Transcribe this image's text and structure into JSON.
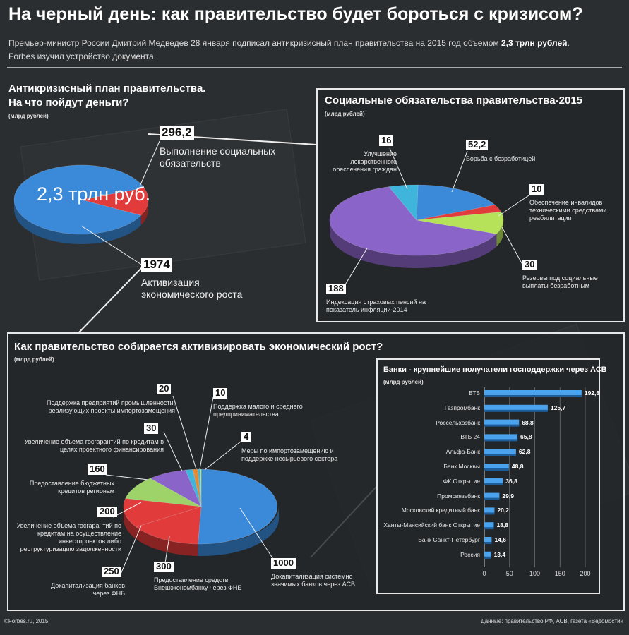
{
  "header": {
    "title": "На черный день: как правительство будет бороться с кризисом?",
    "intro_line1_pre": "Премьер-министр России Дмитрий Медведев 28 января подписал антикризисный план правительства на 2015 год объемом ",
    "intro_line1_hl": "2,3 трлн рублей",
    "intro_line1_post": ".",
    "intro_line2": "Forbes изучил устройство документа."
  },
  "colors": {
    "red": "#e23b3b",
    "blue": "#3b8ad9",
    "purple": "#8a64c8",
    "cyan": "#3fb5dc",
    "lime": "#b6e25a",
    "green": "#9ed36a",
    "orange": "#e58a2e",
    "bar": "#4aa3ec"
  },
  "chart_data": [
    {
      "type": "pie",
      "title": "Антикризисный план правительства. На что пойдут деньги?",
      "unit": "(млрд рублей)",
      "center_label": "2,3 трлн руб.",
      "slices": [
        {
          "value": 296.2,
          "value_label": "296,2",
          "label": "Выполнение социальных обязательств",
          "color": "red"
        },
        {
          "value": 1974,
          "value_label": "1974",
          "label": "Активизация экономического роста",
          "color": "blue"
        }
      ]
    },
    {
      "type": "pie",
      "title": "Социальные обязательства правительства-2015",
      "unit": "(млрд рублей)",
      "slices": [
        {
          "value": 52.2,
          "value_label": "52,2",
          "label": "Борьба с безработицей",
          "color": "blue"
        },
        {
          "value": 10,
          "value_label": "10",
          "label": "Обеспечение инвалидов техническими средствами реабилитации",
          "color": "red"
        },
        {
          "value": 30,
          "value_label": "30",
          "label": "Резервы под социальные выплаты безработным",
          "color": "lime"
        },
        {
          "value": 188,
          "value_label": "188",
          "label": "Индексация страховых пенсий на показатель инфляции-2014",
          "color": "purple"
        },
        {
          "value": 16,
          "value_label": "16",
          "label": "Улучшение лекарственного обеспечения граждан",
          "color": "cyan"
        }
      ]
    },
    {
      "type": "pie",
      "title": "Как правительство собирается активизировать экономический рост?",
      "unit": "(млрд рублей)",
      "slices": [
        {
          "value": 1000,
          "value_label": "1000",
          "label": "Докапитализация системно значимых банков через АСВ",
          "color": "blue"
        },
        {
          "value": 300,
          "value_label": "300",
          "label": "Предоставление средств Внешэкономбанку через ФНБ",
          "color": "red"
        },
        {
          "value": 250,
          "value_label": "250",
          "label": "Докапитализация банков через ФНБ",
          "color": "red"
        },
        {
          "value": 200,
          "value_label": "200",
          "label": "Увеличение объема госгарантий по кредитам на осуществление инвестпроектов либо реструктуризацию задолженности",
          "color": "green"
        },
        {
          "value": 160,
          "value_label": "160",
          "label": "Предоставление бюджетных кредитов регионам",
          "color": "purple"
        },
        {
          "value": 30,
          "value_label": "30",
          "label": "Увеличение объема госгарантий по кредитам в целях проектного финансирования",
          "color": "cyan"
        },
        {
          "value": 20,
          "value_label": "20",
          "label": "Поддержка предприятий промышленности, реализующих проекты импортозамещения",
          "color": "orange"
        },
        {
          "value": 10,
          "value_label": "10",
          "label": "Поддержка малого и среднего предпринимательства",
          "color": "cyan"
        },
        {
          "value": 4,
          "value_label": "4",
          "label": "Меры по импортозамещению и поддержке несырьевого сектора",
          "color": "lime"
        }
      ]
    },
    {
      "type": "bar",
      "orientation": "horizontal",
      "title": "Банки - крупнейшие получатели господдержки через АСВ",
      "unit": "(млрд рублей)",
      "categories": [
        "ВТБ",
        "Газпромбанк",
        "Россельхозбанк",
        "ВТБ 24",
        "Альфа-Банк",
        "Банк Москвы",
        "ФК Открытие",
        "Промсвязьбанк",
        "Московский кредитный банк",
        "Ханты-Мансийский банк Открытие",
        "Банк Санкт-Петербург",
        "Россия"
      ],
      "values": [
        192.8,
        125.7,
        68.8,
        65.8,
        62.8,
        48.8,
        36.8,
        29.9,
        20.2,
        18.8,
        14.6,
        13.4
      ],
      "value_labels": [
        "192,8",
        "125,7",
        "68,8",
        "65,8",
        "62,8",
        "48,8",
        "36,8",
        "29,9",
        "20,2",
        "18,8",
        "14,6",
        "13,4"
      ],
      "xlim": [
        0,
        200
      ],
      "xticks": [
        "0",
        "50",
        "100",
        "150",
        "200"
      ]
    }
  ],
  "footer": {
    "left": "©Forbes.ru, 2015",
    "right": "Данные: правительство РФ, АСВ, газета «Ведомости»"
  }
}
